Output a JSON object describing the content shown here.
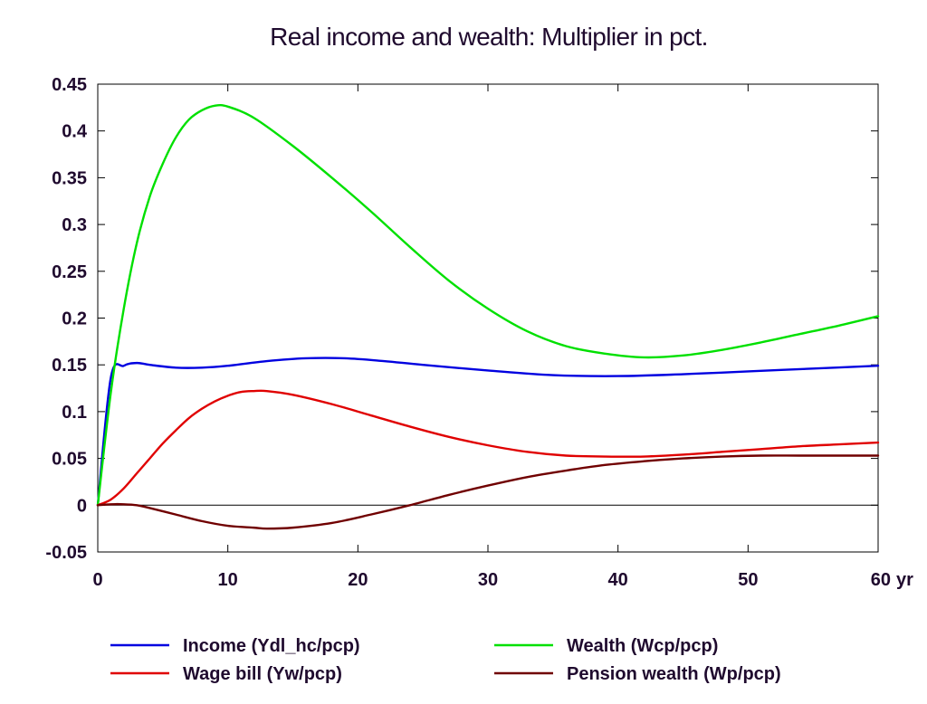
{
  "chart_data": {
    "type": "line",
    "title": "Real income and wealth: Multiplier in pct.",
    "xlabel": "",
    "ylabel": "",
    "x_unit_label": "yr",
    "xlim": [
      0,
      60
    ],
    "ylim": [
      -0.05,
      0.45
    ],
    "x_ticks": [
      0,
      10,
      20,
      30,
      40,
      50,
      60
    ],
    "x_tick_labels": [
      "0",
      "10",
      "20",
      "30",
      "40",
      "50",
      "60"
    ],
    "y_ticks": [
      -0.05,
      0,
      0.05,
      0.1,
      0.15,
      0.2,
      0.25,
      0.3,
      0.35,
      0.4,
      0.45
    ],
    "y_tick_labels": [
      "-0.05",
      "0",
      "0.05",
      "0.1",
      "0.15",
      "0.2",
      "0.25",
      "0.3",
      "0.35",
      "0.4",
      "0.45"
    ],
    "grid": false,
    "zero_line": true,
    "legend_position": "bottom",
    "series": [
      {
        "name": "Income (Ydl_hc/pcp)",
        "color": "#0000e0",
        "points": [
          [
            0,
            0
          ],
          [
            1,
            0.136
          ],
          [
            2,
            0.149
          ],
          [
            3,
            0.152
          ],
          [
            4,
            0.15
          ],
          [
            6,
            0.147
          ],
          [
            8,
            0.147
          ],
          [
            10,
            0.149
          ],
          [
            13,
            0.154
          ],
          [
            16,
            0.157
          ],
          [
            19,
            0.157
          ],
          [
            22,
            0.154
          ],
          [
            25,
            0.15
          ],
          [
            30,
            0.144
          ],
          [
            35,
            0.139
          ],
          [
            40,
            0.138
          ],
          [
            45,
            0.14
          ],
          [
            50,
            0.143
          ],
          [
            55,
            0.146
          ],
          [
            60,
            0.149
          ]
        ]
      },
      {
        "name": "Wealth (Wcp/pcp)",
        "color": "#00e000",
        "points": [
          [
            0,
            0
          ],
          [
            1,
            0.12
          ],
          [
            2,
            0.21
          ],
          [
            3,
            0.28
          ],
          [
            4,
            0.33
          ],
          [
            5,
            0.365
          ],
          [
            6,
            0.393
          ],
          [
            7,
            0.412
          ],
          [
            8,
            0.422
          ],
          [
            9,
            0.427
          ],
          [
            10,
            0.426
          ],
          [
            12,
            0.414
          ],
          [
            15,
            0.384
          ],
          [
            18,
            0.35
          ],
          [
            21,
            0.314
          ],
          [
            24,
            0.276
          ],
          [
            27,
            0.24
          ],
          [
            30,
            0.21
          ],
          [
            33,
            0.186
          ],
          [
            36,
            0.17
          ],
          [
            39,
            0.162
          ],
          [
            42,
            0.158
          ],
          [
            45,
            0.16
          ],
          [
            48,
            0.166
          ],
          [
            51,
            0.174
          ],
          [
            54,
            0.183
          ],
          [
            57,
            0.192
          ],
          [
            60,
            0.202
          ]
        ]
      },
      {
        "name": "Wage bill (Yw/pcp)",
        "color": "#e00000",
        "points": [
          [
            0,
            0
          ],
          [
            1,
            0.006
          ],
          [
            2,
            0.018
          ],
          [
            3,
            0.034
          ],
          [
            4,
            0.05
          ],
          [
            5,
            0.066
          ],
          [
            6,
            0.08
          ],
          [
            7,
            0.093
          ],
          [
            8,
            0.103
          ],
          [
            9,
            0.111
          ],
          [
            10,
            0.117
          ],
          [
            11,
            0.121
          ],
          [
            12,
            0.122
          ],
          [
            13,
            0.122
          ],
          [
            15,
            0.118
          ],
          [
            18,
            0.108
          ],
          [
            21,
            0.096
          ],
          [
            24,
            0.084
          ],
          [
            27,
            0.073
          ],
          [
            30,
            0.064
          ],
          [
            33,
            0.057
          ],
          [
            36,
            0.053
          ],
          [
            39,
            0.052
          ],
          [
            42,
            0.052
          ],
          [
            45,
            0.054
          ],
          [
            48,
            0.057
          ],
          [
            51,
            0.06
          ],
          [
            54,
            0.063
          ],
          [
            57,
            0.065
          ],
          [
            60,
            0.067
          ]
        ]
      },
      {
        "name": "Pension wealth (Wp/pcp)",
        "color": "#700000",
        "points": [
          [
            0,
            0
          ],
          [
            1,
            0.001
          ],
          [
            2,
            0.001
          ],
          [
            3,
            0.0
          ],
          [
            4,
            -0.003
          ],
          [
            6,
            -0.01
          ],
          [
            8,
            -0.017
          ],
          [
            10,
            -0.022
          ],
          [
            12,
            -0.024
          ],
          [
            13,
            -0.025
          ],
          [
            15,
            -0.024
          ],
          [
            18,
            -0.019
          ],
          [
            21,
            -0.01
          ],
          [
            24,
            0.0
          ],
          [
            27,
            0.011
          ],
          [
            30,
            0.021
          ],
          [
            33,
            0.03
          ],
          [
            36,
            0.037
          ],
          [
            39,
            0.043
          ],
          [
            42,
            0.047
          ],
          [
            45,
            0.05
          ],
          [
            48,
            0.052
          ],
          [
            51,
            0.053
          ],
          [
            54,
            0.053
          ],
          [
            57,
            0.053
          ],
          [
            60,
            0.053
          ]
        ]
      }
    ]
  }
}
